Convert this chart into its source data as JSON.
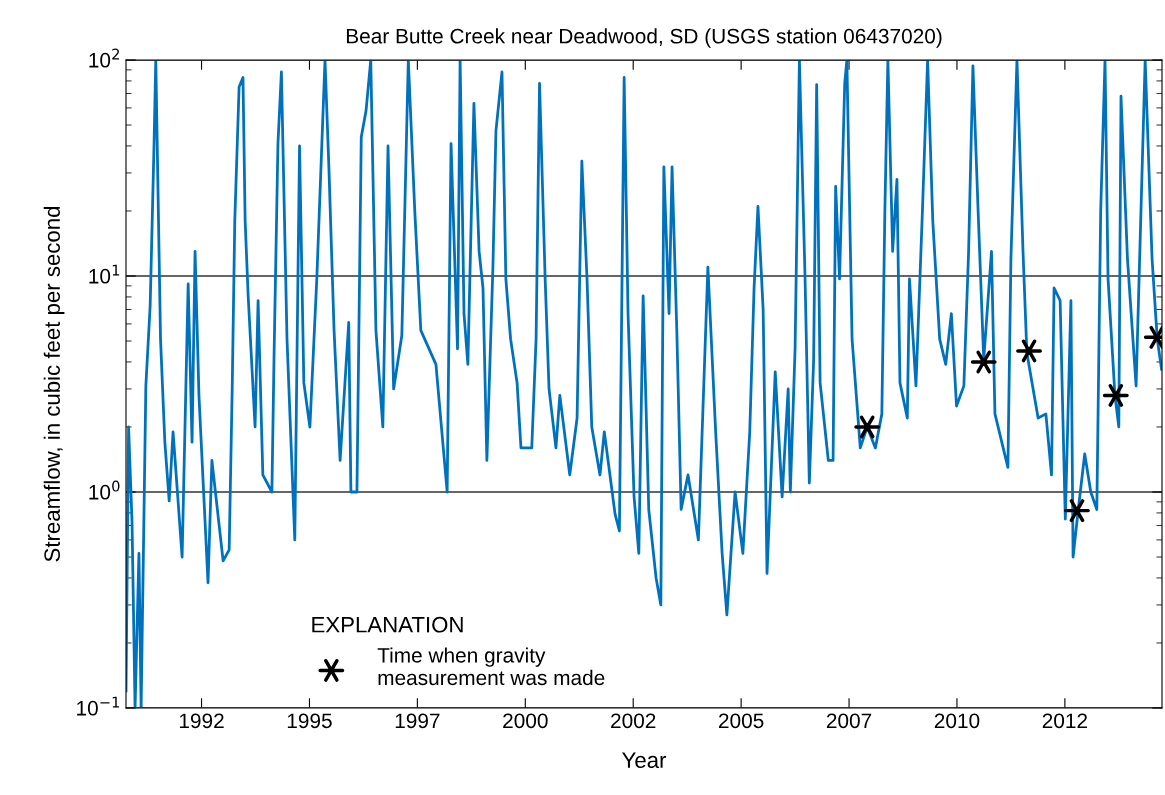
{
  "chart_data": {
    "type": "line",
    "title": "Bear Butte Creek near Deadwood, SD (USGS station 06437020)",
    "xlabel": "Year",
    "ylabel": "Streamflow, in cubic feet per second",
    "legend_title": "EXPLANATION",
    "log": "y",
    "grid": "y",
    "legend": "bottom left",
    "xlim": [
      1990.75,
      2014.75
    ],
    "xticks": [
      {
        "value": 1992.5,
        "label": "1992"
      },
      {
        "value": 1995.0,
        "label": "1995"
      },
      {
        "value": 1997.5,
        "label": "1997"
      },
      {
        "value": 2000.0,
        "label": "2000"
      },
      {
        "value": 2002.5,
        "label": "2002"
      },
      {
        "value": 2005.0,
        "label": "2005"
      },
      {
        "value": 2007.5,
        "label": "2007"
      },
      {
        "value": 2010.0,
        "label": "2010"
      },
      {
        "value": 2012.5,
        "label": "2012"
      }
    ],
    "ylim": [
      0.1,
      100
    ],
    "yticks": [
      {
        "value": 0.1,
        "label": "10$^{−1}$"
      },
      {
        "value": 1,
        "label": "10$^{0}$"
      },
      {
        "value": 10,
        "label": "10$^{1}$"
      },
      {
        "value": 100,
        "label": "10$^{2}$"
      }
    ],
    "series": [
      {
        "color": "#0072bd",
        "marker": "none",
        "line_style": "solid",
        "x": [
          1990.75,
          1990.81,
          1990.89,
          1990.96,
          1991.05,
          1991.1,
          1991.21,
          1991.31,
          1991.4,
          1991.44,
          1991.55,
          1991.65,
          1991.75,
          1991.84,
          1992.05,
          1992.19,
          1992.28,
          1992.35,
          1992.44,
          1992.65,
          1992.74,
          1993.0,
          1993.14,
          1993.21,
          1993.27,
          1993.37,
          1993.46,
          1993.51,
          1993.58,
          1993.74,
          1993.81,
          1993.92,
          1994.13,
          1994.18,
          1994.27,
          1994.35,
          1994.48,
          1994.66,
          1994.77,
          1994.87,
          1995.01,
          1995.17,
          1995.36,
          1995.45,
          1995.57,
          1995.71,
          1995.91,
          1995.96,
          1996.1,
          1996.2,
          1996.31,
          1996.42,
          1996.54,
          1996.7,
          1996.82,
          1996.95,
          1997.14,
          1997.29,
          1997.44,
          1997.58,
          1997.93,
          1998.19,
          1998.28,
          1998.43,
          1998.49,
          1998.58,
          1998.67,
          1998.81,
          1998.93,
          1999.02,
          1999.11,
          1999.25,
          1999.32,
          1999.46,
          1999.55,
          1999.66,
          1999.81,
          1999.9,
          2000.15,
          2000.25,
          2000.33,
          2000.46,
          2000.55,
          2000.71,
          2000.8,
          2001.03,
          2001.2,
          2001.31,
          2001.43,
          2001.54,
          2001.73,
          2001.83,
          2002.08,
          2002.18,
          2002.29,
          2002.38,
          2002.52,
          2002.63,
          2002.73,
          2002.86,
          2003.03,
          2003.14,
          2003.21,
          2003.33,
          2003.4,
          2003.51,
          2003.61,
          2003.77,
          2004.01,
          2004.23,
          2004.41,
          2004.56,
          2004.67,
          2004.86,
          2005.04,
          2005.2,
          2005.3,
          2005.39,
          2005.51,
          2005.6,
          2005.79,
          2005.95,
          2006.09,
          2006.14,
          2006.25,
          2006.35,
          2006.48,
          2006.58,
          2006.68,
          2006.75,
          2006.83,
          2007.02,
          2007.13,
          2007.19,
          2007.28,
          2007.4,
          2007.45,
          2007.57,
          2007.76,
          2007.92,
          2008.11,
          2008.26,
          2008.33,
          2008.4,
          2008.51,
          2008.61,
          2008.68,
          2008.85,
          2008.9,
          2009.05,
          2009.2,
          2009.32,
          2009.44,
          2009.6,
          2009.74,
          2009.87,
          2009.99,
          2010.16,
          2010.27,
          2010.37,
          2010.49,
          2010.62,
          2010.8,
          2010.88,
          2011.18,
          2011.25,
          2011.39,
          2011.53,
          2011.62,
          2011.88,
          2012.06,
          2012.19,
          2012.25,
          2012.39,
          2012.51,
          2012.64,
          2012.69,
          2012.81,
          2012.96,
          2013.1,
          2013.24,
          2013.33,
          2013.43,
          2013.5,
          2013.66,
          2013.75,
          2013.8,
          2013.95,
          2014.15,
          2014.36,
          2014.52,
          2014.64,
          2014.74
        ],
        "values": [
          0.12,
          2.0,
          0.72,
          0.1,
          0.52,
          0.1,
          3.1,
          7.3,
          41,
          100,
          5.1,
          1.7,
          0.91,
          1.9,
          0.5,
          9.2,
          1.7,
          13,
          2.8,
          0.38,
          1.4,
          0.48,
          0.54,
          3.0,
          18,
          75,
          83,
          18,
          8.1,
          2.0,
          7.7,
          1.2,
          1.0,
          4.3,
          41,
          88,
          5.1,
          0.6,
          40,
          3.2,
          2.0,
          9.7,
          100,
          32,
          5.6,
          1.4,
          6.1,
          1.0,
          1.0,
          44,
          58,
          100,
          5.6,
          2.0,
          40,
          3.0,
          5.3,
          100,
          20,
          5.6,
          3.9,
          1.0,
          41,
          4.6,
          100,
          6.7,
          3.9,
          63,
          13,
          8.8,
          1.4,
          11,
          47,
          88,
          9.7,
          5.1,
          3.2,
          1.6,
          1.6,
          5.1,
          78,
          9.7,
          3.0,
          1.6,
          2.8,
          1.2,
          2.2,
          34,
          9.7,
          2.0,
          1.2,
          1.9,
          0.79,
          0.66,
          83,
          6.7,
          0.95,
          0.52,
          8.1,
          0.83,
          0.4,
          0.3,
          32,
          6.7,
          32,
          5.6,
          0.83,
          1.2,
          0.6,
          11,
          1.9,
          0.52,
          0.27,
          1.0,
          0.52,
          1.9,
          8.8,
          21,
          7.0,
          0.42,
          3.6,
          0.95,
          3.0,
          1.0,
          4.6,
          100,
          10,
          1.1,
          4.1,
          77,
          3.2,
          1.4,
          1.4,
          26,
          9.7,
          78,
          100,
          5.1,
          1.6,
          2.0,
          1.6,
          2.3,
          20,
          100,
          13,
          28,
          3.2,
          2.2,
          9.7,
          3.1,
          20,
          100,
          18,
          5.1,
          3.9,
          6.7,
          2.5,
          3.1,
          13,
          94,
          20,
          4.1,
          13,
          2.3,
          1.3,
          12,
          100,
          13,
          4.4,
          2.2,
          2.3,
          1.2,
          8.8,
          7.7,
          0.75,
          7.7,
          0.5,
          0.83,
          1.5,
          1.0,
          0.83,
          20,
          100,
          9.7,
          2.8,
          2.0,
          68,
          12,
          3.1,
          100,
          12,
          5.1,
          3.7
        ]
      },
      {
        "type": "scatter",
        "name": "Time when gravity\nmeasurement was made",
        "color": "#000000",
        "marker": "cross",
        "x": [
          2007.92,
          2010.62,
          2011.67,
          2012.78,
          2013.68,
          2014.63
        ],
        "values": [
          2.0,
          4.0,
          4.5,
          0.82,
          2.8,
          5.2
        ]
      }
    ]
  }
}
